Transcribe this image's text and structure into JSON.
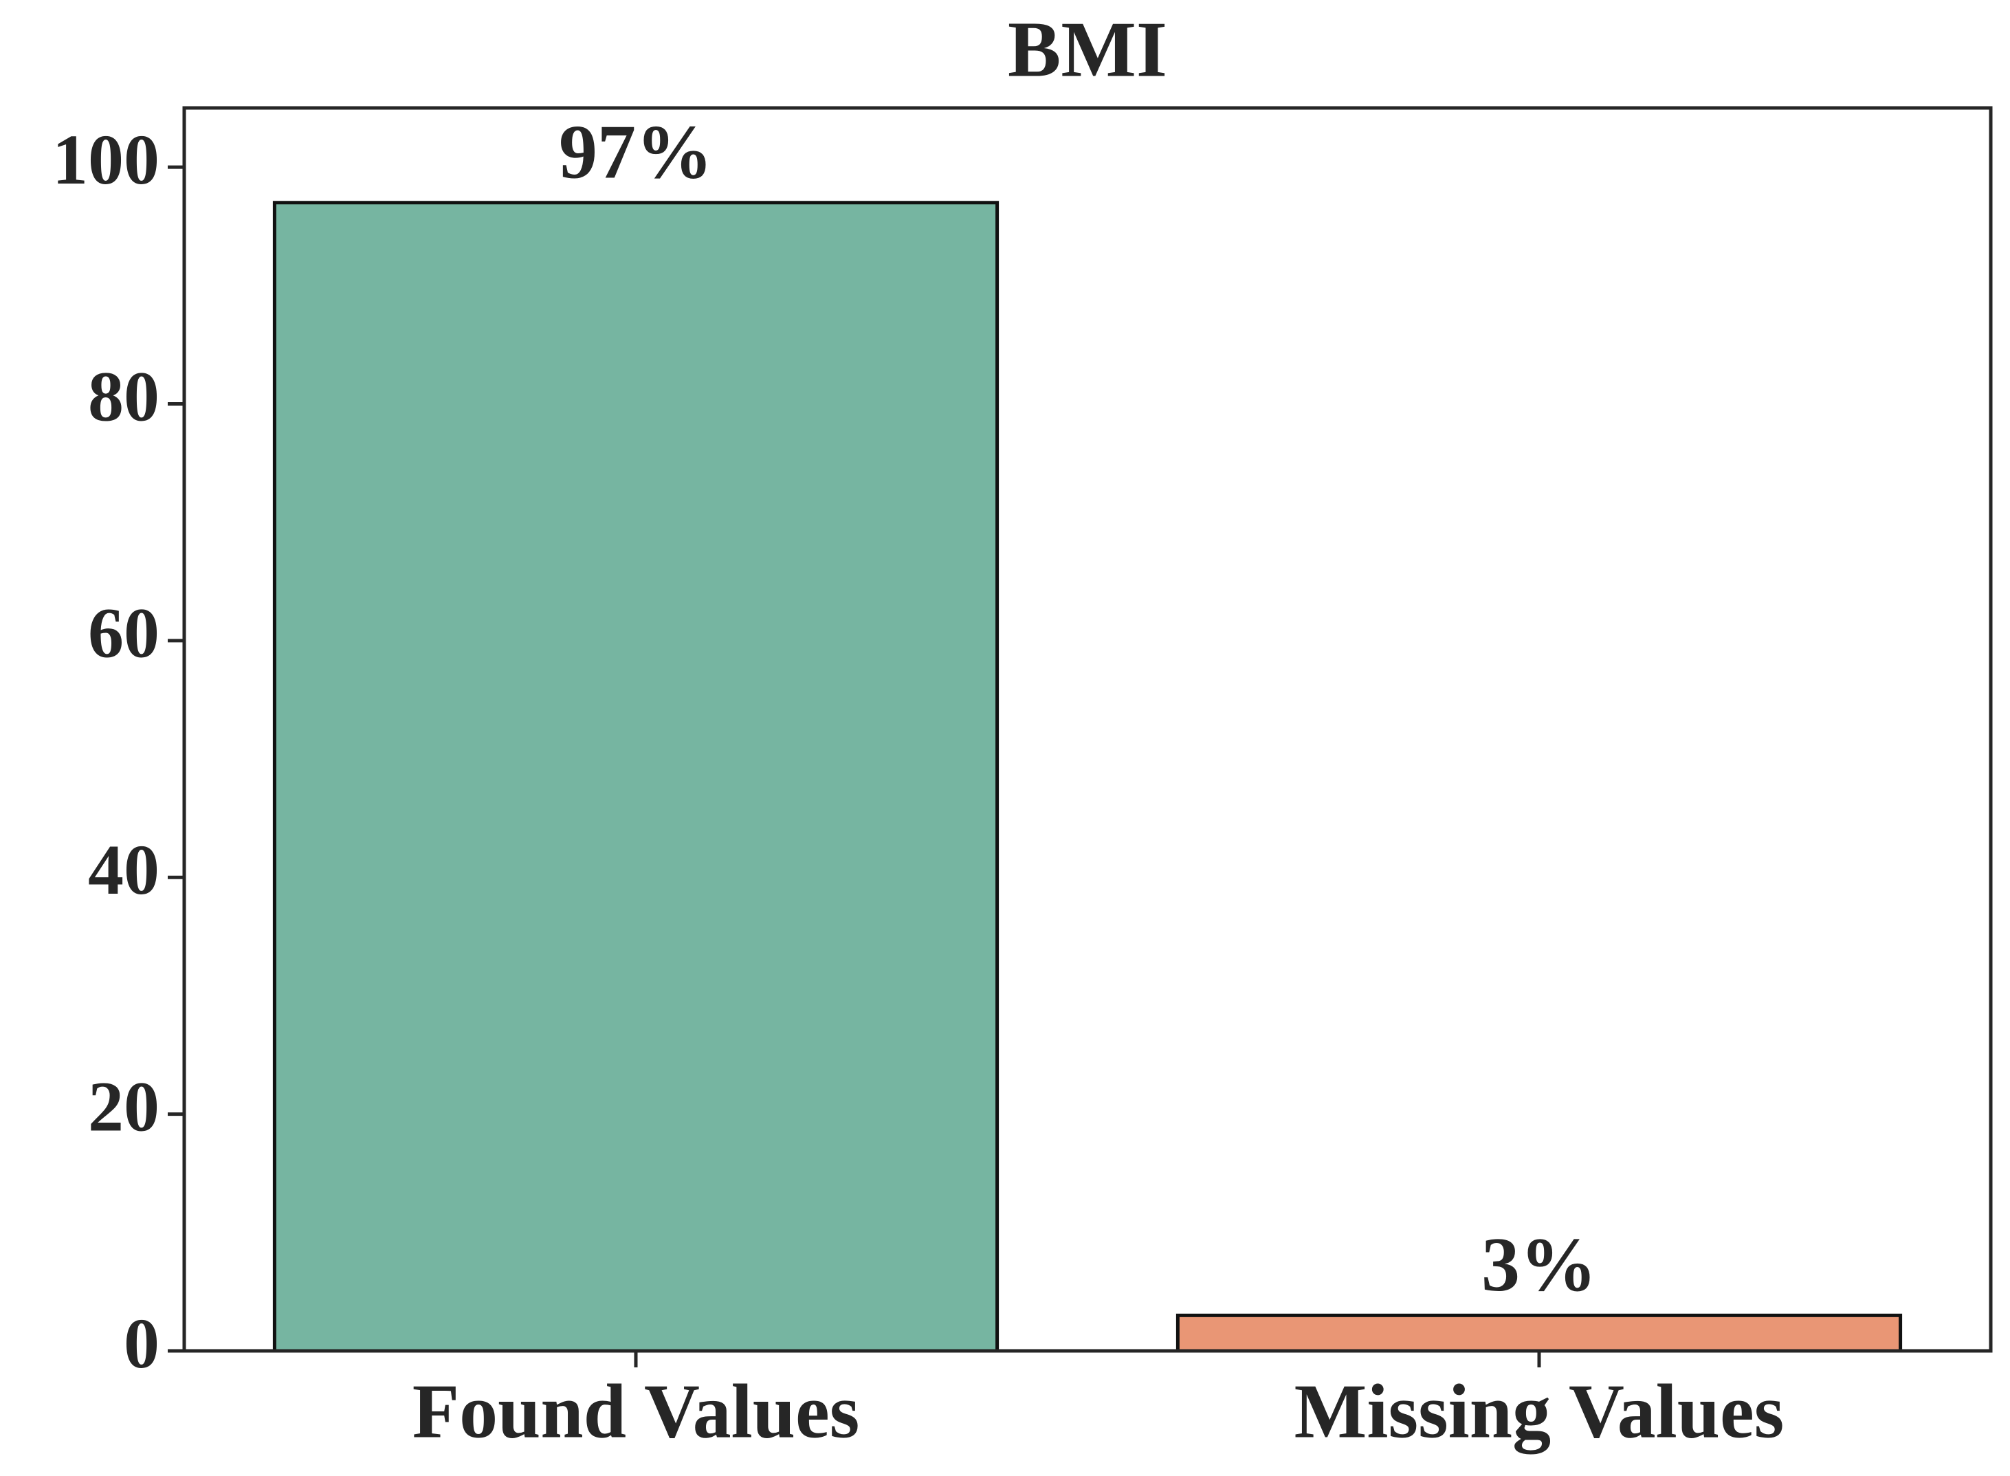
{
  "chart_data": {
    "type": "bar",
    "title": "BMI",
    "categories": [
      "Found Values",
      "Missing Values"
    ],
    "values": [
      97,
      3
    ],
    "value_labels": [
      "97%",
      "3%"
    ],
    "colors": [
      "#76b5a1",
      "#e99675"
    ],
    "ylim": [
      0,
      105
    ],
    "yticks": [
      0,
      20,
      40,
      60,
      80,
      100
    ],
    "grid": false
  }
}
